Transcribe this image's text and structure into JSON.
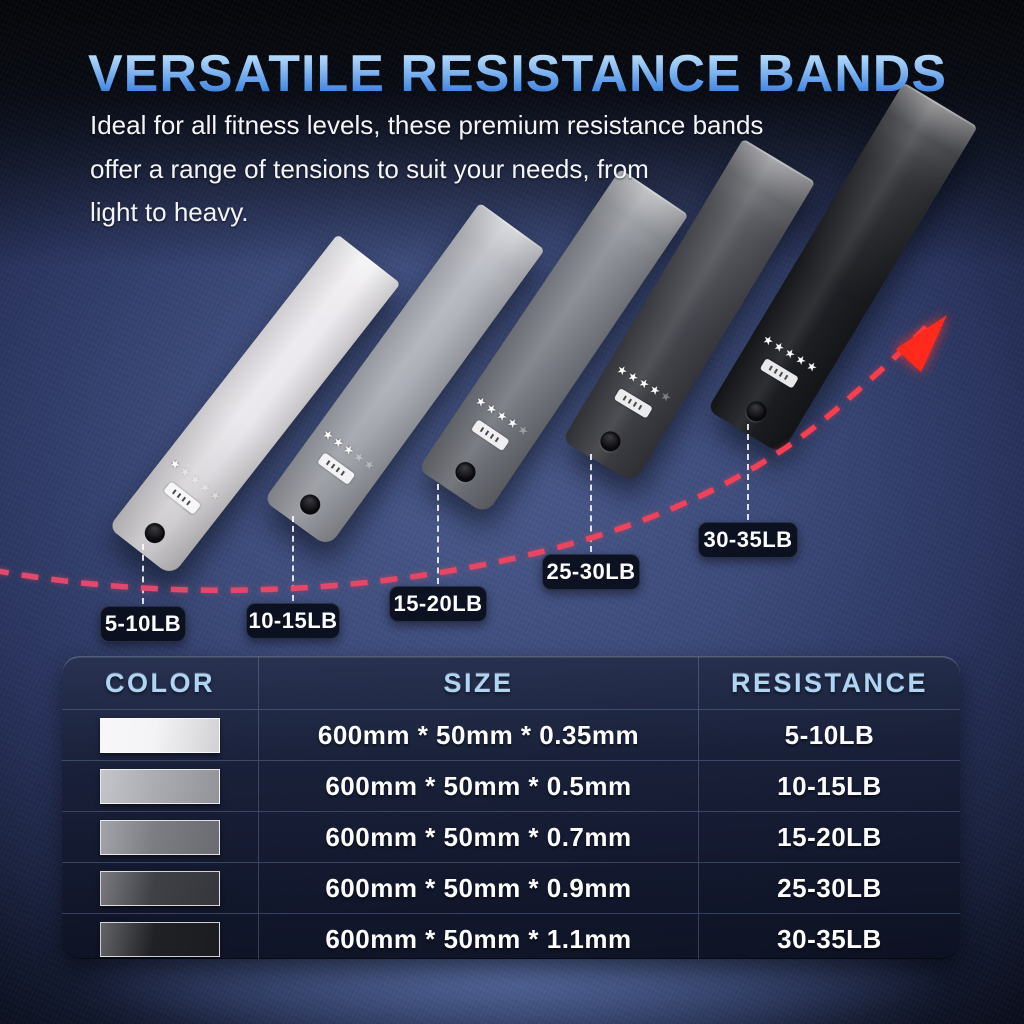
{
  "title": "VERSATILE RESISTANCE BANDS",
  "subtitle_lines": [
    "Ideal for all fitness levels, these premium resistance bands",
    "offer a range of tensions to suit your needs, from",
    "light to heavy."
  ],
  "icons": {
    "star": "★"
  },
  "bands": [
    {
      "label": "5-10LB",
      "color": "#e9e7eb",
      "stars_filled": 1,
      "stars_total": 5
    },
    {
      "label": "10-15LB",
      "color": "#a9acb4",
      "stars_filled": 3,
      "stars_total": 5
    },
    {
      "label": "15-20LB",
      "color": "#797c84",
      "stars_filled": 4,
      "stars_total": 5
    },
    {
      "label": "25-30LB",
      "color": "#404148",
      "stars_filled": 4,
      "stars_total": 5
    },
    {
      "label": "30-35LB",
      "color": "#1a1b20",
      "stars_filled": 5,
      "stars_total": 5
    }
  ],
  "trend_arrow": {
    "dash_color_start": "#de4a70",
    "dash_color_end": "#ff3b45",
    "head_color": "#ff2a1c"
  },
  "spec_table": {
    "headers": [
      "COLOR",
      "SIZE",
      "RESISTANCE"
    ],
    "rows": [
      {
        "color_hex": "#f4f4f6",
        "size": "600mm * 50mm * 0.35mm",
        "resistance": "5-10LB"
      },
      {
        "color_hex": "#aaacb2",
        "size": "600mm * 50mm * 0.5mm",
        "resistance": "10-15LB"
      },
      {
        "color_hex": "#7b7d83",
        "size": "600mm * 50mm * 0.7mm",
        "resistance": "15-20LB"
      },
      {
        "color_hex": "#3f4046",
        "size": "600mm * 50mm * 0.9mm",
        "resistance": "25-30LB"
      },
      {
        "color_hex": "#202125",
        "size": "600mm * 50mm * 1.1mm",
        "resistance": "30-35LB"
      }
    ]
  },
  "theme": {
    "title_gradient_top": "#dbeefe",
    "title_gradient_bottom": "#2e6cc8",
    "header_text_color": "#aed5f5",
    "background_blue": "#3c4a7a",
    "badge_background": "#0d1322"
  }
}
